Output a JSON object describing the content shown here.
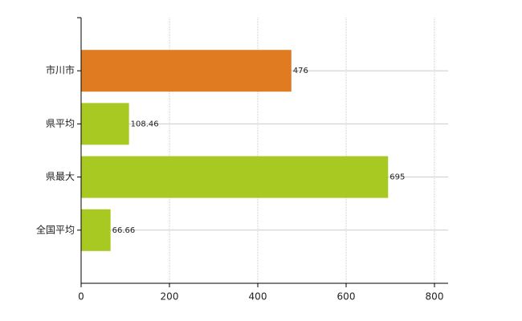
{
  "chart_data": {
    "type": "bar",
    "orientation": "horizontal",
    "categories": [
      "市川市",
      "県平均",
      "県最大",
      "全国平均"
    ],
    "values": [
      476,
      108.46,
      695,
      66.66
    ],
    "colors": [
      "#e07b22",
      "#a8c921",
      "#a8c921",
      "#a8c921"
    ],
    "xlim": [
      0,
      800
    ],
    "xticks": [
      0,
      200,
      400,
      600,
      800
    ],
    "grid": true
  }
}
